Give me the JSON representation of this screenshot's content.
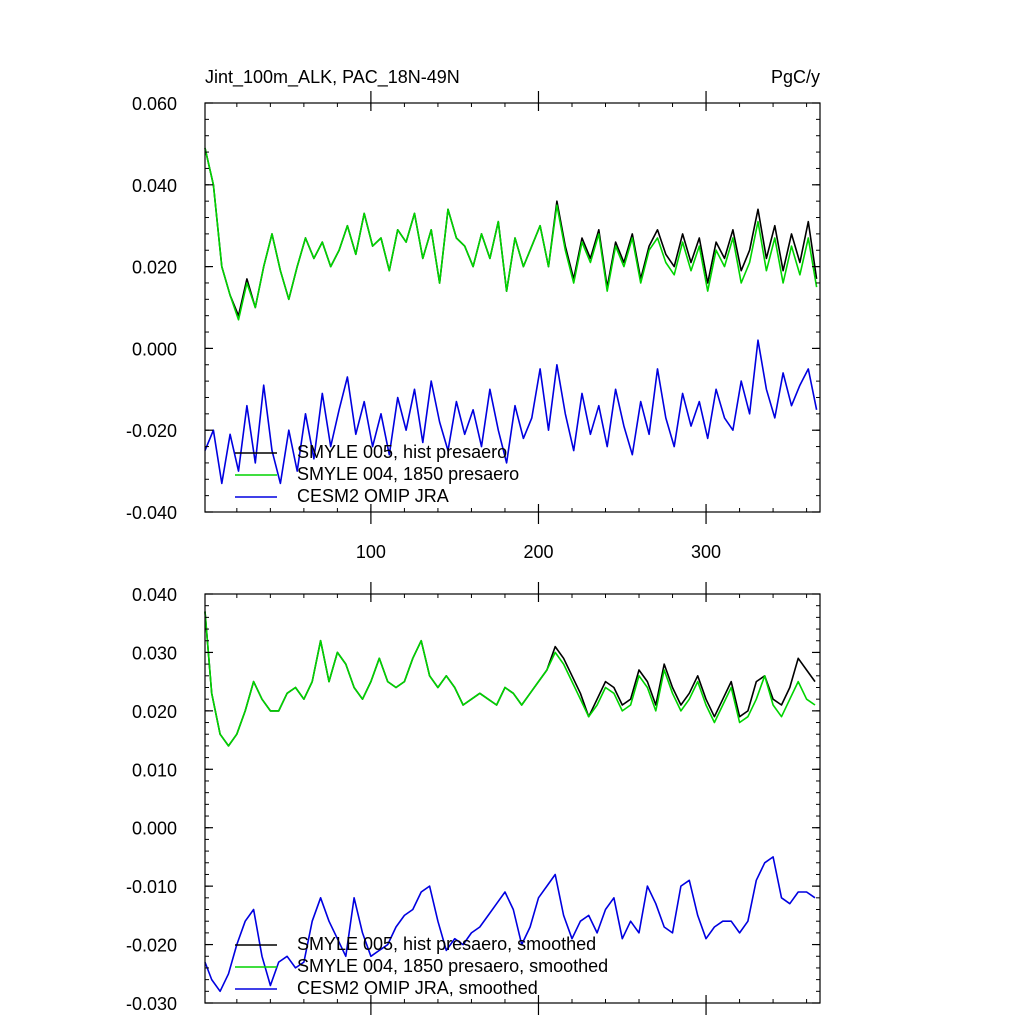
{
  "chart_data": [
    {
      "type": "line",
      "title": "Jint_100m_ALK, PAC_18N-49N",
      "units": "PgC/y",
      "xlabel": "",
      "ylabel": "",
      "xlim": [
        1,
        368
      ],
      "ylim": [
        -0.04,
        0.06
      ],
      "xticks": [
        100,
        200,
        300
      ],
      "xtick_labels": [
        "100",
        "200",
        "300"
      ],
      "yticks": [
        -0.04,
        -0.02,
        0.0,
        0.02,
        0.04,
        0.06
      ],
      "ytick_labels": [
        "-0.040",
        "-0.020",
        "0.000",
        "0.020",
        "0.040",
        "0.060"
      ],
      "grid": false,
      "legend_position": "lower-left",
      "series": [
        {
          "name": "SMYLE 005, hist presaero",
          "color": "#000000",
          "x": [
            1,
            6,
            11,
            16,
            21,
            26,
            31,
            36,
            41,
            46,
            51,
            56,
            61,
            66,
            71,
            76,
            81,
            86,
            91,
            96,
            101,
            106,
            111,
            116,
            121,
            126,
            131,
            136,
            141,
            146,
            151,
            156,
            161,
            166,
            171,
            176,
            181,
            186,
            191,
            196,
            201,
            206,
            211,
            216,
            221,
            226,
            231,
            236,
            241,
            246,
            251,
            256,
            261,
            266,
            271,
            276,
            281,
            286,
            291,
            296,
            301,
            306,
            311,
            316,
            321,
            326,
            331,
            336,
            341,
            346,
            351,
            356,
            361,
            366
          ],
          "y": [
            0.049,
            0.04,
            0.02,
            0.013,
            0.008,
            0.017,
            0.01,
            0.02,
            0.028,
            0.019,
            0.012,
            0.02,
            0.027,
            0.022,
            0.026,
            0.02,
            0.024,
            0.03,
            0.023,
            0.033,
            0.025,
            0.027,
            0.019,
            0.029,
            0.026,
            0.033,
            0.022,
            0.029,
            0.016,
            0.034,
            0.027,
            0.025,
            0.02,
            0.028,
            0.022,
            0.031,
            0.014,
            0.027,
            0.02,
            0.025,
            0.03,
            0.02,
            0.036,
            0.025,
            0.017,
            0.027,
            0.022,
            0.029,
            0.015,
            0.026,
            0.021,
            0.028,
            0.017,
            0.025,
            0.029,
            0.023,
            0.02,
            0.028,
            0.021,
            0.027,
            0.016,
            0.026,
            0.022,
            0.029,
            0.019,
            0.024,
            0.034,
            0.022,
            0.03,
            0.019,
            0.028,
            0.021,
            0.031,
            0.017
          ]
        },
        {
          "name": "SMYLE 004, 1850 presaero",
          "color": "#00d400",
          "x": [
            1,
            6,
            11,
            16,
            21,
            26,
            31,
            36,
            41,
            46,
            51,
            56,
            61,
            66,
            71,
            76,
            81,
            86,
            91,
            96,
            101,
            106,
            111,
            116,
            121,
            126,
            131,
            136,
            141,
            146,
            151,
            156,
            161,
            166,
            171,
            176,
            181,
            186,
            191,
            196,
            201,
            206,
            211,
            216,
            221,
            226,
            231,
            236,
            241,
            246,
            251,
            256,
            261,
            266,
            271,
            276,
            281,
            286,
            291,
            296,
            301,
            306,
            311,
            316,
            321,
            326,
            331,
            336,
            341,
            346,
            351,
            356,
            361,
            366
          ],
          "y": [
            0.049,
            0.04,
            0.02,
            0.013,
            0.007,
            0.016,
            0.01,
            0.02,
            0.028,
            0.019,
            0.012,
            0.02,
            0.027,
            0.022,
            0.026,
            0.02,
            0.024,
            0.03,
            0.023,
            0.033,
            0.025,
            0.027,
            0.019,
            0.029,
            0.026,
            0.033,
            0.022,
            0.029,
            0.016,
            0.034,
            0.027,
            0.025,
            0.02,
            0.028,
            0.022,
            0.031,
            0.014,
            0.027,
            0.02,
            0.025,
            0.03,
            0.02,
            0.035,
            0.024,
            0.016,
            0.026,
            0.021,
            0.028,
            0.014,
            0.025,
            0.02,
            0.027,
            0.016,
            0.024,
            0.027,
            0.021,
            0.018,
            0.026,
            0.019,
            0.025,
            0.014,
            0.024,
            0.02,
            0.027,
            0.016,
            0.021,
            0.031,
            0.019,
            0.027,
            0.016,
            0.025,
            0.018,
            0.027,
            0.015
          ]
        },
        {
          "name": "CESM2 OMIP JRA",
          "color": "#0000e0",
          "x": [
            1,
            6,
            11,
            16,
            21,
            26,
            31,
            36,
            41,
            46,
            51,
            56,
            61,
            66,
            71,
            76,
            81,
            86,
            91,
            96,
            101,
            106,
            111,
            116,
            121,
            126,
            131,
            136,
            141,
            146,
            151,
            156,
            161,
            166,
            171,
            176,
            181,
            186,
            191,
            196,
            201,
            206,
            211,
            216,
            221,
            226,
            231,
            236,
            241,
            246,
            251,
            256,
            261,
            266,
            271,
            276,
            281,
            286,
            291,
            296,
            301,
            306,
            311,
            316,
            321,
            326,
            331,
            336,
            341,
            346,
            351,
            356,
            361,
            366
          ],
          "y": [
            -0.025,
            -0.02,
            -0.033,
            -0.021,
            -0.03,
            -0.014,
            -0.028,
            -0.009,
            -0.025,
            -0.033,
            -0.02,
            -0.03,
            -0.016,
            -0.027,
            -0.011,
            -0.024,
            -0.015,
            -0.007,
            -0.021,
            -0.013,
            -0.024,
            -0.016,
            -0.026,
            -0.012,
            -0.02,
            -0.01,
            -0.023,
            -0.008,
            -0.018,
            -0.025,
            -0.013,
            -0.021,
            -0.015,
            -0.024,
            -0.01,
            -0.02,
            -0.028,
            -0.014,
            -0.022,
            -0.017,
            -0.005,
            -0.02,
            -0.004,
            -0.016,
            -0.025,
            -0.011,
            -0.021,
            -0.014,
            -0.024,
            -0.01,
            -0.019,
            -0.026,
            -0.013,
            -0.021,
            -0.005,
            -0.017,
            -0.024,
            -0.011,
            -0.019,
            -0.013,
            -0.022,
            -0.01,
            -0.017,
            -0.02,
            -0.008,
            -0.016,
            0.002,
            -0.01,
            -0.017,
            -0.006,
            -0.014,
            -0.009,
            -0.005,
            -0.015
          ]
        }
      ]
    },
    {
      "type": "line",
      "title": "",
      "xlabel": "",
      "ylabel": "",
      "xlim": [
        1,
        368
      ],
      "ylim": [
        -0.03,
        0.04
      ],
      "xticks": [
        100,
        200,
        300
      ],
      "xtick_labels": [],
      "yticks": [
        -0.03,
        -0.02,
        -0.01,
        0.0,
        0.01,
        0.02,
        0.03,
        0.04
      ],
      "ytick_labels": [
        "-0.030",
        "-0.020",
        "-0.010",
        "0.000",
        "0.010",
        "0.020",
        "0.030",
        "0.040"
      ],
      "grid": false,
      "legend_position": "lower-left",
      "series": [
        {
          "name": "SMYLE 005, hist presaero, smoothed",
          "color": "#000000",
          "x": [
            1,
            5,
            10,
            15,
            20,
            25,
            30,
            35,
            40,
            45,
            50,
            55,
            60,
            65,
            70,
            75,
            80,
            85,
            90,
            95,
            100,
            105,
            110,
            115,
            120,
            125,
            130,
            135,
            140,
            145,
            150,
            155,
            160,
            165,
            170,
            175,
            180,
            185,
            190,
            195,
            200,
            205,
            210,
            215,
            220,
            225,
            230,
            235,
            240,
            245,
            250,
            255,
            260,
            265,
            270,
            275,
            280,
            285,
            290,
            295,
            300,
            305,
            310,
            315,
            320,
            325,
            330,
            335,
            340,
            345,
            350,
            355,
            360,
            365
          ],
          "y": [
            0.037,
            0.023,
            0.016,
            0.014,
            0.016,
            0.02,
            0.025,
            0.022,
            0.02,
            0.02,
            0.023,
            0.024,
            0.022,
            0.025,
            0.032,
            0.025,
            0.03,
            0.028,
            0.024,
            0.022,
            0.025,
            0.029,
            0.025,
            0.024,
            0.025,
            0.029,
            0.032,
            0.026,
            0.024,
            0.026,
            0.024,
            0.021,
            0.022,
            0.023,
            0.022,
            0.021,
            0.024,
            0.023,
            0.021,
            0.023,
            0.025,
            0.027,
            0.031,
            0.029,
            0.026,
            0.023,
            0.019,
            0.022,
            0.025,
            0.024,
            0.021,
            0.022,
            0.027,
            0.025,
            0.021,
            0.028,
            0.024,
            0.021,
            0.023,
            0.026,
            0.022,
            0.019,
            0.022,
            0.025,
            0.019,
            0.02,
            0.025,
            0.026,
            0.022,
            0.021,
            0.024,
            0.029,
            0.027,
            0.025
          ]
        },
        {
          "name": "SMYLE 004, 1850 presaero, smoothed",
          "color": "#00d400",
          "x": [
            1,
            5,
            10,
            15,
            20,
            25,
            30,
            35,
            40,
            45,
            50,
            55,
            60,
            65,
            70,
            75,
            80,
            85,
            90,
            95,
            100,
            105,
            110,
            115,
            120,
            125,
            130,
            135,
            140,
            145,
            150,
            155,
            160,
            165,
            170,
            175,
            180,
            185,
            190,
            195,
            200,
            205,
            210,
            215,
            220,
            225,
            230,
            235,
            240,
            245,
            250,
            255,
            260,
            265,
            270,
            275,
            280,
            285,
            290,
            295,
            300,
            305,
            310,
            315,
            320,
            325,
            330,
            335,
            340,
            345,
            350,
            355,
            360,
            365
          ],
          "y": [
            0.037,
            0.023,
            0.016,
            0.014,
            0.016,
            0.02,
            0.025,
            0.022,
            0.02,
            0.02,
            0.023,
            0.024,
            0.022,
            0.025,
            0.032,
            0.025,
            0.03,
            0.028,
            0.024,
            0.022,
            0.025,
            0.029,
            0.025,
            0.024,
            0.025,
            0.029,
            0.032,
            0.026,
            0.024,
            0.026,
            0.024,
            0.021,
            0.022,
            0.023,
            0.022,
            0.021,
            0.024,
            0.023,
            0.021,
            0.023,
            0.025,
            0.027,
            0.03,
            0.028,
            0.025,
            0.022,
            0.019,
            0.021,
            0.024,
            0.023,
            0.02,
            0.021,
            0.026,
            0.024,
            0.02,
            0.027,
            0.023,
            0.02,
            0.022,
            0.025,
            0.021,
            0.018,
            0.021,
            0.024,
            0.018,
            0.019,
            0.022,
            0.026,
            0.021,
            0.019,
            0.022,
            0.025,
            0.022,
            0.021
          ]
        },
        {
          "name": "CESM2 OMIP JRA, smoothed",
          "color": "#0000e0",
          "x": [
            1,
            5,
            10,
            15,
            20,
            25,
            30,
            35,
            40,
            45,
            50,
            55,
            60,
            65,
            70,
            75,
            80,
            85,
            90,
            95,
            100,
            105,
            110,
            115,
            120,
            125,
            130,
            135,
            140,
            145,
            150,
            155,
            160,
            165,
            170,
            175,
            180,
            185,
            190,
            195,
            200,
            205,
            210,
            215,
            220,
            225,
            230,
            235,
            240,
            245,
            250,
            255,
            260,
            265,
            270,
            275,
            280,
            285,
            290,
            295,
            300,
            305,
            310,
            315,
            320,
            325,
            330,
            335,
            340,
            345,
            350,
            355,
            360,
            365
          ],
          "y": [
            -0.023,
            -0.026,
            -0.028,
            -0.025,
            -0.02,
            -0.016,
            -0.014,
            -0.022,
            -0.027,
            -0.023,
            -0.022,
            -0.024,
            -0.023,
            -0.016,
            -0.012,
            -0.016,
            -0.019,
            -0.022,
            -0.012,
            -0.018,
            -0.022,
            -0.021,
            -0.02,
            -0.017,
            -0.015,
            -0.014,
            -0.011,
            -0.01,
            -0.016,
            -0.021,
            -0.019,
            -0.02,
            -0.018,
            -0.017,
            -0.015,
            -0.013,
            -0.011,
            -0.014,
            -0.02,
            -0.017,
            -0.012,
            -0.01,
            -0.008,
            -0.015,
            -0.019,
            -0.016,
            -0.015,
            -0.018,
            -0.014,
            -0.012,
            -0.019,
            -0.016,
            -0.018,
            -0.01,
            -0.013,
            -0.017,
            -0.018,
            -0.01,
            -0.009,
            -0.015,
            -0.019,
            -0.017,
            -0.016,
            -0.016,
            -0.018,
            -0.016,
            -0.009,
            -0.006,
            -0.005,
            -0.012,
            -0.013,
            -0.011,
            -0.011,
            -0.012
          ]
        }
      ]
    }
  ]
}
